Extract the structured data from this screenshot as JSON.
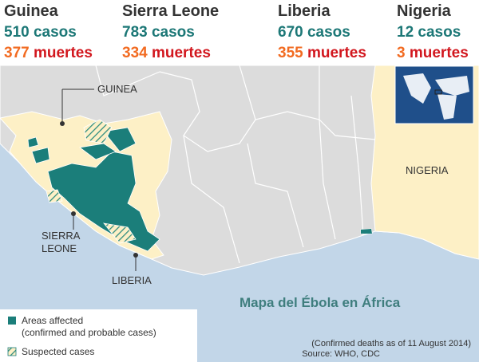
{
  "stats": [
    {
      "country": "Guinea",
      "cases": 510,
      "cases_word": "casos",
      "deaths": 377,
      "deaths_word": "muertes"
    },
    {
      "country": "Sierra Leone",
      "cases": 783,
      "cases_word": "casos",
      "deaths": 334,
      "deaths_word": "muertes"
    },
    {
      "country": "Liberia",
      "cases": 670,
      "cases_word": "casos",
      "deaths": 355,
      "deaths_word": "muertes"
    },
    {
      "country": "Nigeria",
      "cases": 12,
      "cases_word": "casos",
      "deaths": 3,
      "deaths_word": "muertes"
    }
  ],
  "map": {
    "labels": [
      "GUINEA",
      "SIERRA",
      "LEONE",
      "LIBERIA",
      "NIGERIA"
    ],
    "title": "Mapa del Ébola en África"
  },
  "legend": [
    {
      "label": "Areas affected",
      "note": "(confirmed and probable cases)"
    },
    {
      "label": "Suspected cases"
    }
  ],
  "footnote": "(Confirmed deaths as of 11 August 2014)",
  "source": "Source: WHO, CDC"
}
